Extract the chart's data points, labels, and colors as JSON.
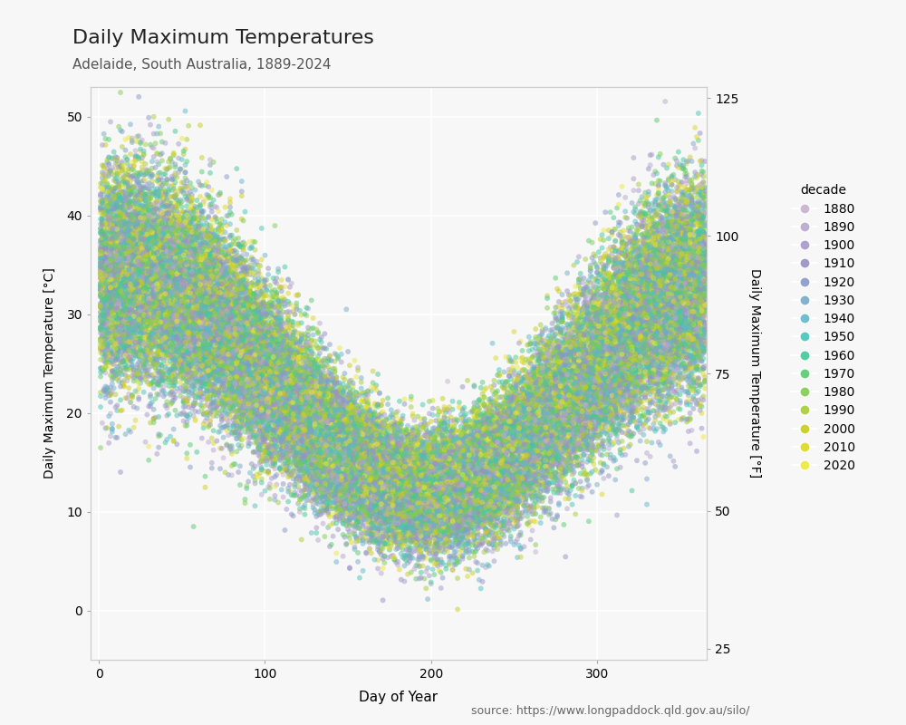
{
  "title": "Daily Maximum Temperatures",
  "subtitle": "Adelaide, South Australia, 1889-2024",
  "xlabel": "Day of Year",
  "ylabel_left": "Daily Maximum Temperature [°C]",
  "ylabel_right": "Daily Maximum Temperature [°F]",
  "source": "source: https://www.longpaddock.qld.gov.au/silo/",
  "xlim": [
    -5,
    366
  ],
  "ylim_c": [
    -5,
    53
  ],
  "ylim_f": [
    23,
    127
  ],
  "yticks_c": [
    0,
    10,
    20,
    30,
    40,
    50
  ],
  "yticks_f": [
    25,
    50,
    75,
    100,
    125
  ],
  "xticks": [
    0,
    100,
    200,
    300
  ],
  "decades": [
    1880,
    1890,
    1900,
    1910,
    1920,
    1930,
    1940,
    1950,
    1960,
    1970,
    1980,
    1990,
    2000,
    2010,
    2020
  ],
  "decade_colors": [
    "#c8b0cc",
    "#b8a8cc",
    "#a898c8",
    "#9890c4",
    "#8898c8",
    "#78aac8",
    "#60b8cc",
    "#48c4b8",
    "#40c898",
    "#58cc70",
    "#80cc50",
    "#a8cc38",
    "#c8cc20",
    "#ddd820",
    "#eee840"
  ],
  "point_size": 18,
  "point_alpha": 0.5,
  "background_color": "#f7f7f7",
  "grid_color": "#ffffff",
  "mean_temp": 22.5,
  "amplitude": 11.0,
  "noise_scale": 4.2,
  "trend_per_year": 0.008,
  "seed": 42
}
